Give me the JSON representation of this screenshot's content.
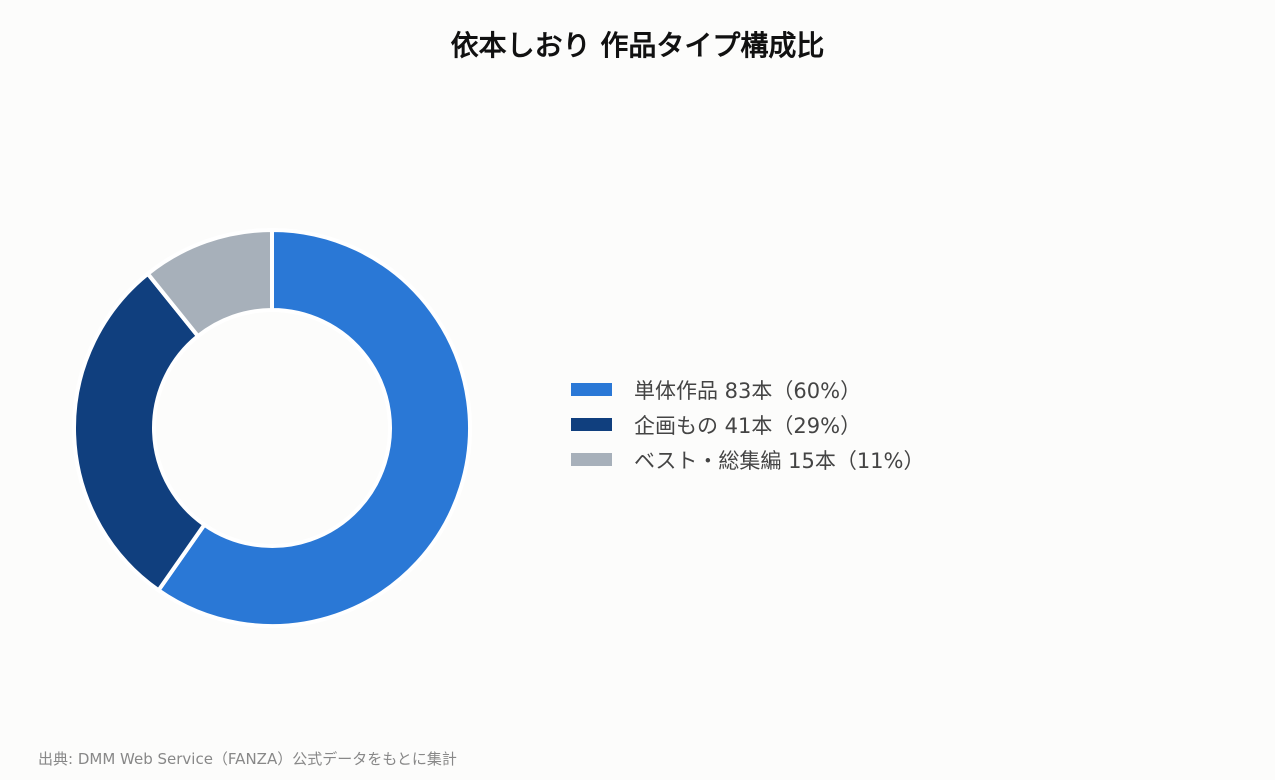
{
  "chart_data": {
    "type": "pie",
    "style": "donut",
    "title": "依本しおり 作品タイプ構成比",
    "categories": [
      "単体作品",
      "企画もの",
      "ベスト・総集編"
    ],
    "values": [
      83,
      41,
      15
    ],
    "percentages": [
      60,
      29,
      11
    ],
    "colors": [
      "#2a78d6",
      "#103f7e",
      "#a7b0ba"
    ],
    "legend_labels": [
      "単体作品 83本（60%）",
      "企画もの 41本（29%）",
      "ベスト・総集編 15本（11%）"
    ],
    "legend_position": "right"
  },
  "source": "出典: DMM Web Service（FANZA）公式データをもとに集計"
}
